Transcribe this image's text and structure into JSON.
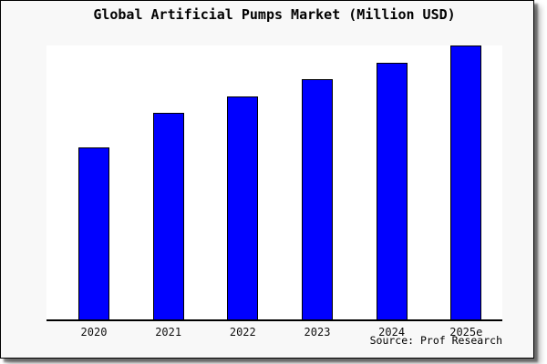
{
  "frame": {
    "background": "#f8f8f8",
    "border_color": "#000000"
  },
  "chart_data": {
    "type": "bar",
    "title": "Global Artificial Pumps Market (Million USD)",
    "categories": [
      "2020",
      "2021",
      "2022",
      "2023",
      "2024",
      "2025e"
    ],
    "values": [
      62.8,
      75.3,
      81.5,
      87.8,
      93.8,
      100
    ],
    "value_note": "no numeric y-axis shown; values are relative bar heights, max bar = 100",
    "xlabel": "",
    "ylabel": "",
    "ylim": [
      0,
      100
    ],
    "grid": false,
    "legend": false,
    "bar_color": "#0000ff",
    "bar_border_color": "#000000",
    "plot_background": "#ffffff",
    "axis_line_color": "#000000"
  },
  "source": {
    "label": "Source: Prof Research"
  }
}
